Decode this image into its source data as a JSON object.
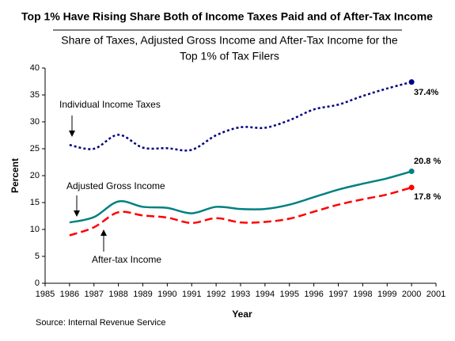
{
  "chart_data": {
    "type": "line",
    "title": "Top 1% Have Rising Share Both of Income Taxes Paid and of After-Tax Income",
    "subtitle": [
      "Share of Taxes, Adjusted Gross Income and After-Tax Income for the",
      "Top 1% of Tax Filers"
    ],
    "x_label": "Year",
    "y_label": "Percent",
    "source": "Source: Internal Revenue Service",
    "x": [
      1986,
      1987,
      1988,
      1989,
      1990,
      1991,
      1992,
      1993,
      1994,
      1995,
      1996,
      1997,
      1998,
      1999,
      2000
    ],
    "series": [
      {
        "name": "Individual Income Taxes",
        "color": "#000080",
        "dash": "dotted",
        "values": [
          25.7,
          25.0,
          27.6,
          25.2,
          25.1,
          24.8,
          27.5,
          29.0,
          28.9,
          30.3,
          32.3,
          33.2,
          34.8,
          36.2,
          37.4
        ],
        "value_labels": [
          null,
          null,
          null,
          null,
          null,
          null,
          null,
          null,
          null,
          null,
          null,
          null,
          null,
          null,
          "37.4%"
        ]
      },
      {
        "name": "Adjusted Gross Income",
        "color": "#008080",
        "dash": "solid",
        "values": [
          11.3,
          12.3,
          15.2,
          14.2,
          14.0,
          13.0,
          14.2,
          13.8,
          13.8,
          14.6,
          16.0,
          17.4,
          18.5,
          19.5,
          20.8
        ],
        "value_labels": [
          null,
          null,
          null,
          null,
          null,
          null,
          null,
          null,
          null,
          null,
          null,
          null,
          null,
          null,
          "20.8 %"
        ]
      },
      {
        "name": "After-tax Income",
        "color": "#ff0000",
        "dash": "dashed",
        "values": [
          8.9,
          10.4,
          13.2,
          12.6,
          12.2,
          11.2,
          12.1,
          11.3,
          11.4,
          12.0,
          13.3,
          14.6,
          15.6,
          16.5,
          17.8
        ],
        "value_labels": [
          null,
          null,
          null,
          null,
          null,
          null,
          null,
          null,
          null,
          null,
          null,
          null,
          null,
          null,
          "17.8 %"
        ]
      }
    ],
    "xlim": [
      1985,
      2001
    ],
    "xticks": [
      1985,
      1986,
      1987,
      1988,
      1989,
      1990,
      1991,
      1992,
      1993,
      1994,
      1995,
      1996,
      1997,
      1998,
      1999,
      2000,
      2001
    ],
    "ylim": [
      0,
      40
    ],
    "yticks": [
      0,
      5,
      10,
      15,
      20,
      25,
      30,
      35,
      40
    ],
    "grid": false
  }
}
